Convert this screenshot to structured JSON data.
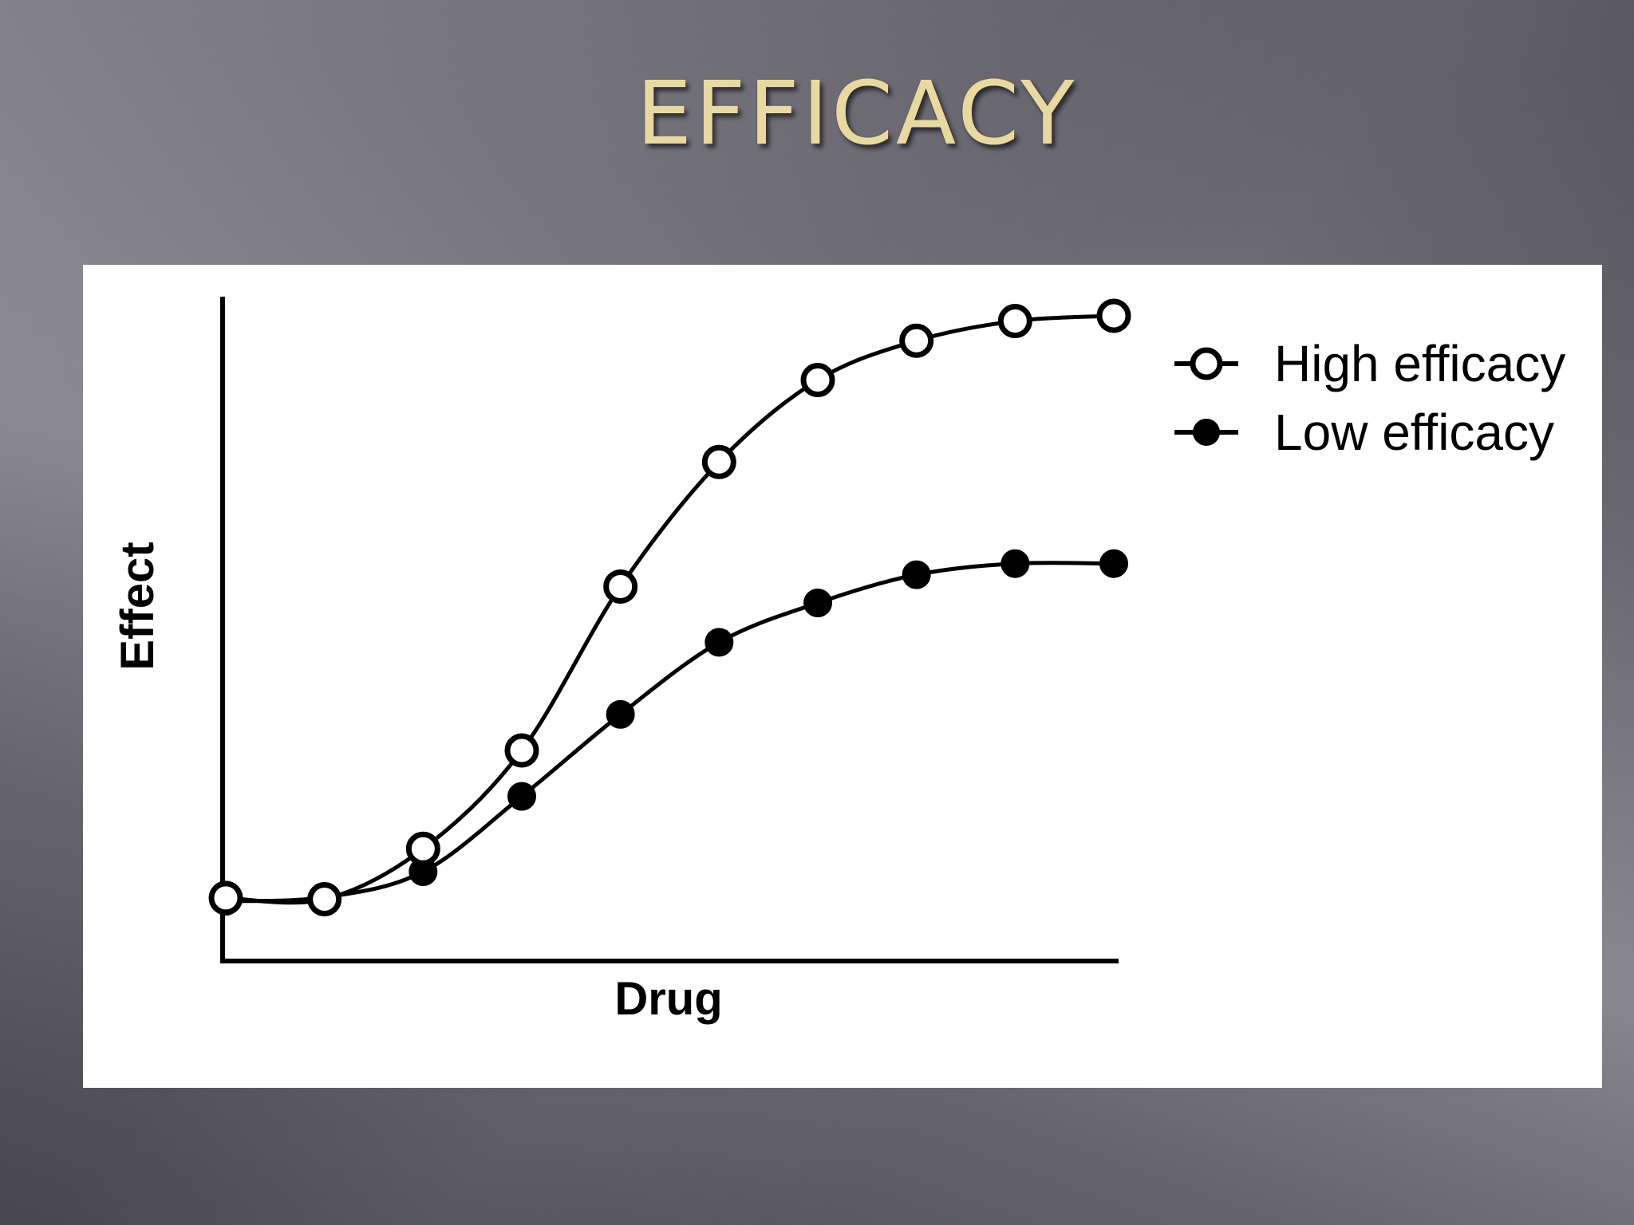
{
  "slide": {
    "title": "EFFICACY"
  },
  "colors": {
    "title": "#e8d9a3",
    "panel": "#ffffff",
    "ink": "#000000"
  },
  "chart_data": {
    "type": "line",
    "xlabel": "Drug",
    "ylabel": "Effect",
    "x": [
      0,
      1,
      2,
      3,
      4,
      5,
      6,
      7,
      8,
      9
    ],
    "xlim": [
      0,
      9
    ],
    "ylim": [
      0,
      100
    ],
    "grid": false,
    "legend_position": "top-right",
    "series": [
      {
        "name": "High efficacy",
        "marker": "open-circle",
        "values": [
          9.5,
          9.3,
          17,
          32,
          57,
          76,
          88.5,
          94.5,
          97.5,
          98.3
        ]
      },
      {
        "name": "Low efficacy",
        "marker": "filled-circle",
        "values": [
          9.0,
          9.6,
          13.5,
          25,
          37.5,
          48.5,
          54.5,
          58.8,
          60.5,
          60.5
        ]
      }
    ]
  }
}
